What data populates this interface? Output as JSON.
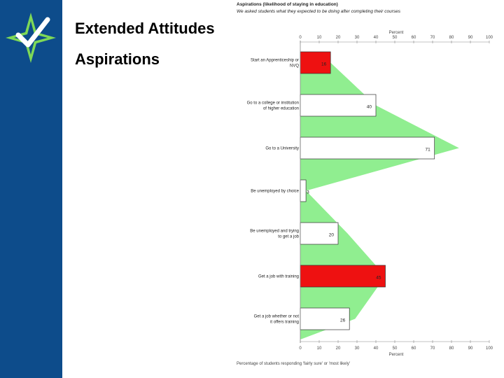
{
  "slide": {
    "title": "Extended Attitudes",
    "subtitle": "Aspirations"
  },
  "colors": {
    "sidebar": "#0d4c8b",
    "logo_white": "#ffffff",
    "logo_green": "#7ed957",
    "bar_red": "#ee1111",
    "bar_white": "#ffffff",
    "area_green": "#90ee90"
  },
  "chart_data": {
    "type": "bar",
    "orientation": "horizontal",
    "title": "Aspirations (likelihood of staying in education)",
    "subtitle": "We asked students what they expected to be doing after completing their courses",
    "xlabel": "Percent",
    "footer": "Percentage of students responding 'fairly sure' or 'most likely'",
    "xlim": [
      0,
      100
    ],
    "ticks": [
      "0",
      "10",
      "20",
      "30",
      "40",
      "50",
      "60",
      "70",
      "80",
      "90",
      "100"
    ],
    "categories": [
      [
        "Start an Apprenticeship or",
        "NVQ"
      ],
      [
        "Go to a college or institution",
        "of higher education"
      ],
      [
        "Go to a University"
      ],
      [
        "Be unemployed by choice"
      ],
      [
        "Be unemployed and trying",
        "to get a job"
      ],
      [
        "Get a job with training"
      ],
      [
        "Get a job whether or not",
        "it offers training"
      ]
    ],
    "values": [
      16,
      40,
      71,
      3,
      20,
      45,
      26
    ],
    "highlight": [
      true,
      false,
      false,
      false,
      false,
      true,
      false
    ],
    "area_values": [
      16,
      40,
      84,
      3,
      25,
      45,
      29
    ]
  }
}
